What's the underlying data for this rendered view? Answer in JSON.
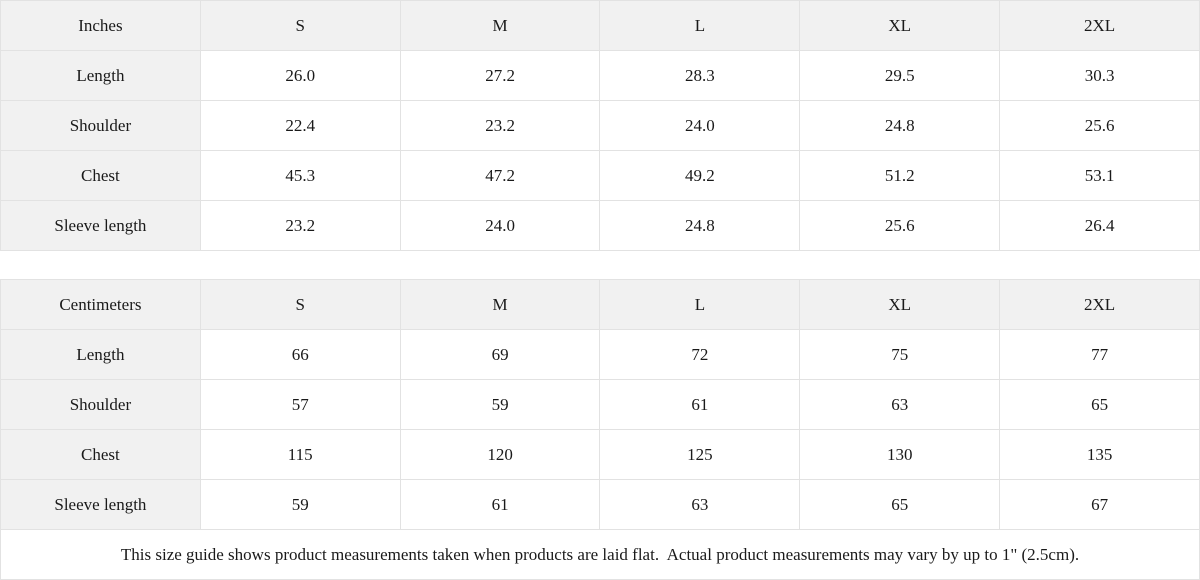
{
  "chart_data": [
    {
      "type": "table",
      "title": "Inches",
      "columns": [
        "Inches",
        "S",
        "M",
        "L",
        "XL",
        "2XL"
      ],
      "rows": [
        [
          "Length",
          "26.0",
          "27.2",
          "28.3",
          "29.5",
          "30.3"
        ],
        [
          "Shoulder",
          "22.4",
          "23.2",
          "24.0",
          "24.8",
          "25.6"
        ],
        [
          "Chest",
          "45.3",
          "47.2",
          "49.2",
          "51.2",
          "53.1"
        ],
        [
          "Sleeve length",
          "23.2",
          "24.0",
          "24.8",
          "25.6",
          "26.4"
        ]
      ]
    },
    {
      "type": "table",
      "title": "Centimeters",
      "columns": [
        "Centimeters",
        "S",
        "M",
        "L",
        "XL",
        "2XL"
      ],
      "rows": [
        [
          "Length",
          "66",
          "69",
          "72",
          "75",
          "77"
        ],
        [
          "Shoulder",
          "57",
          "59",
          "61",
          "63",
          "65"
        ],
        [
          "Chest",
          "115",
          "120",
          "125",
          "130",
          "135"
        ],
        [
          "Sleeve length",
          "59",
          "61",
          "63",
          "65",
          "67"
        ]
      ]
    }
  ],
  "footer_note": "This size guide shows product measurements taken when products are laid flat.  Actual product measurements may vary by up to 1\" (2.5cm).",
  "colors": {
    "header_bg": "#f1f1f1",
    "cell_bg": "#ffffff",
    "border": "#e2e2e2",
    "text": "#1a1a1a"
  }
}
